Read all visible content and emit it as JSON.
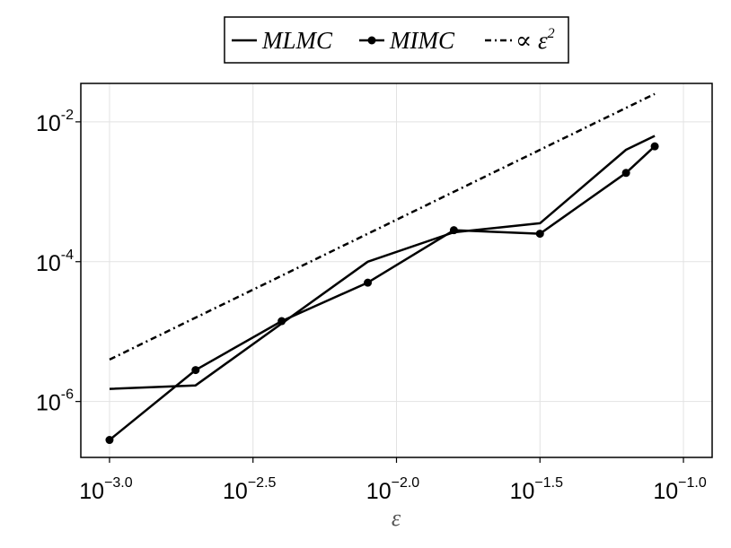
{
  "chart_data": {
    "type": "line",
    "title": "",
    "xlabel": "ε",
    "ylabel": "",
    "xscale": "log10",
    "yscale": "log10",
    "grid": true,
    "legend_position": "top-center",
    "xlim_log10": [
      -3.1,
      -0.9
    ],
    "ylim_log10": [
      -6.8,
      -1.45
    ],
    "x_ticks": [
      {
        "base": "10",
        "exp": "−3.0",
        "value": -3.0
      },
      {
        "base": "10",
        "exp": "−2.5",
        "value": -2.5
      },
      {
        "base": "10",
        "exp": "−2.0",
        "value": -2.0
      },
      {
        "base": "10",
        "exp": "−1.5",
        "value": -1.5
      },
      {
        "base": "10",
        "exp": "−1.0",
        "value": -1.0
      }
    ],
    "y_ticks": [
      {
        "base": "10",
        "exp": "-2",
        "value": -2
      },
      {
        "base": "10",
        "exp": "-4",
        "value": -4
      },
      {
        "base": "10",
        "exp": "-6",
        "value": -6
      }
    ],
    "series": [
      {
        "name": "MLMC",
        "style": "solid",
        "markers": false,
        "color": "#000000",
        "x_log10": [
          -3.0,
          -2.7,
          -2.1,
          -1.8,
          -1.5,
          -1.2,
          -1.1
        ],
        "y_log10": [
          -5.82,
          -5.77,
          -4.0,
          -3.58,
          -3.45,
          -2.4,
          -2.2
        ]
      },
      {
        "name": "MIMC",
        "style": "solid",
        "markers": true,
        "color": "#000000",
        "x_log10": [
          -3.0,
          -2.7,
          -2.4,
          -2.1,
          -1.8,
          -1.5,
          -1.2,
          -1.1
        ],
        "y_log10": [
          -6.55,
          -5.55,
          -4.85,
          -4.3,
          -3.55,
          -3.6,
          -2.73,
          -2.35
        ]
      },
      {
        "name": "∝ ε²",
        "style": "dashdot",
        "markers": false,
        "color": "#000000",
        "x_log10": [
          -3.0,
          -1.1
        ],
        "y_log10": [
          -5.4,
          -1.6
        ]
      }
    ],
    "legend": {
      "entries": [
        {
          "label": "MLMC",
          "series": 0
        },
        {
          "label": "MIMC",
          "series": 1
        },
        {
          "label": "∝ ε",
          "sup": "2",
          "series": 2
        }
      ]
    }
  }
}
